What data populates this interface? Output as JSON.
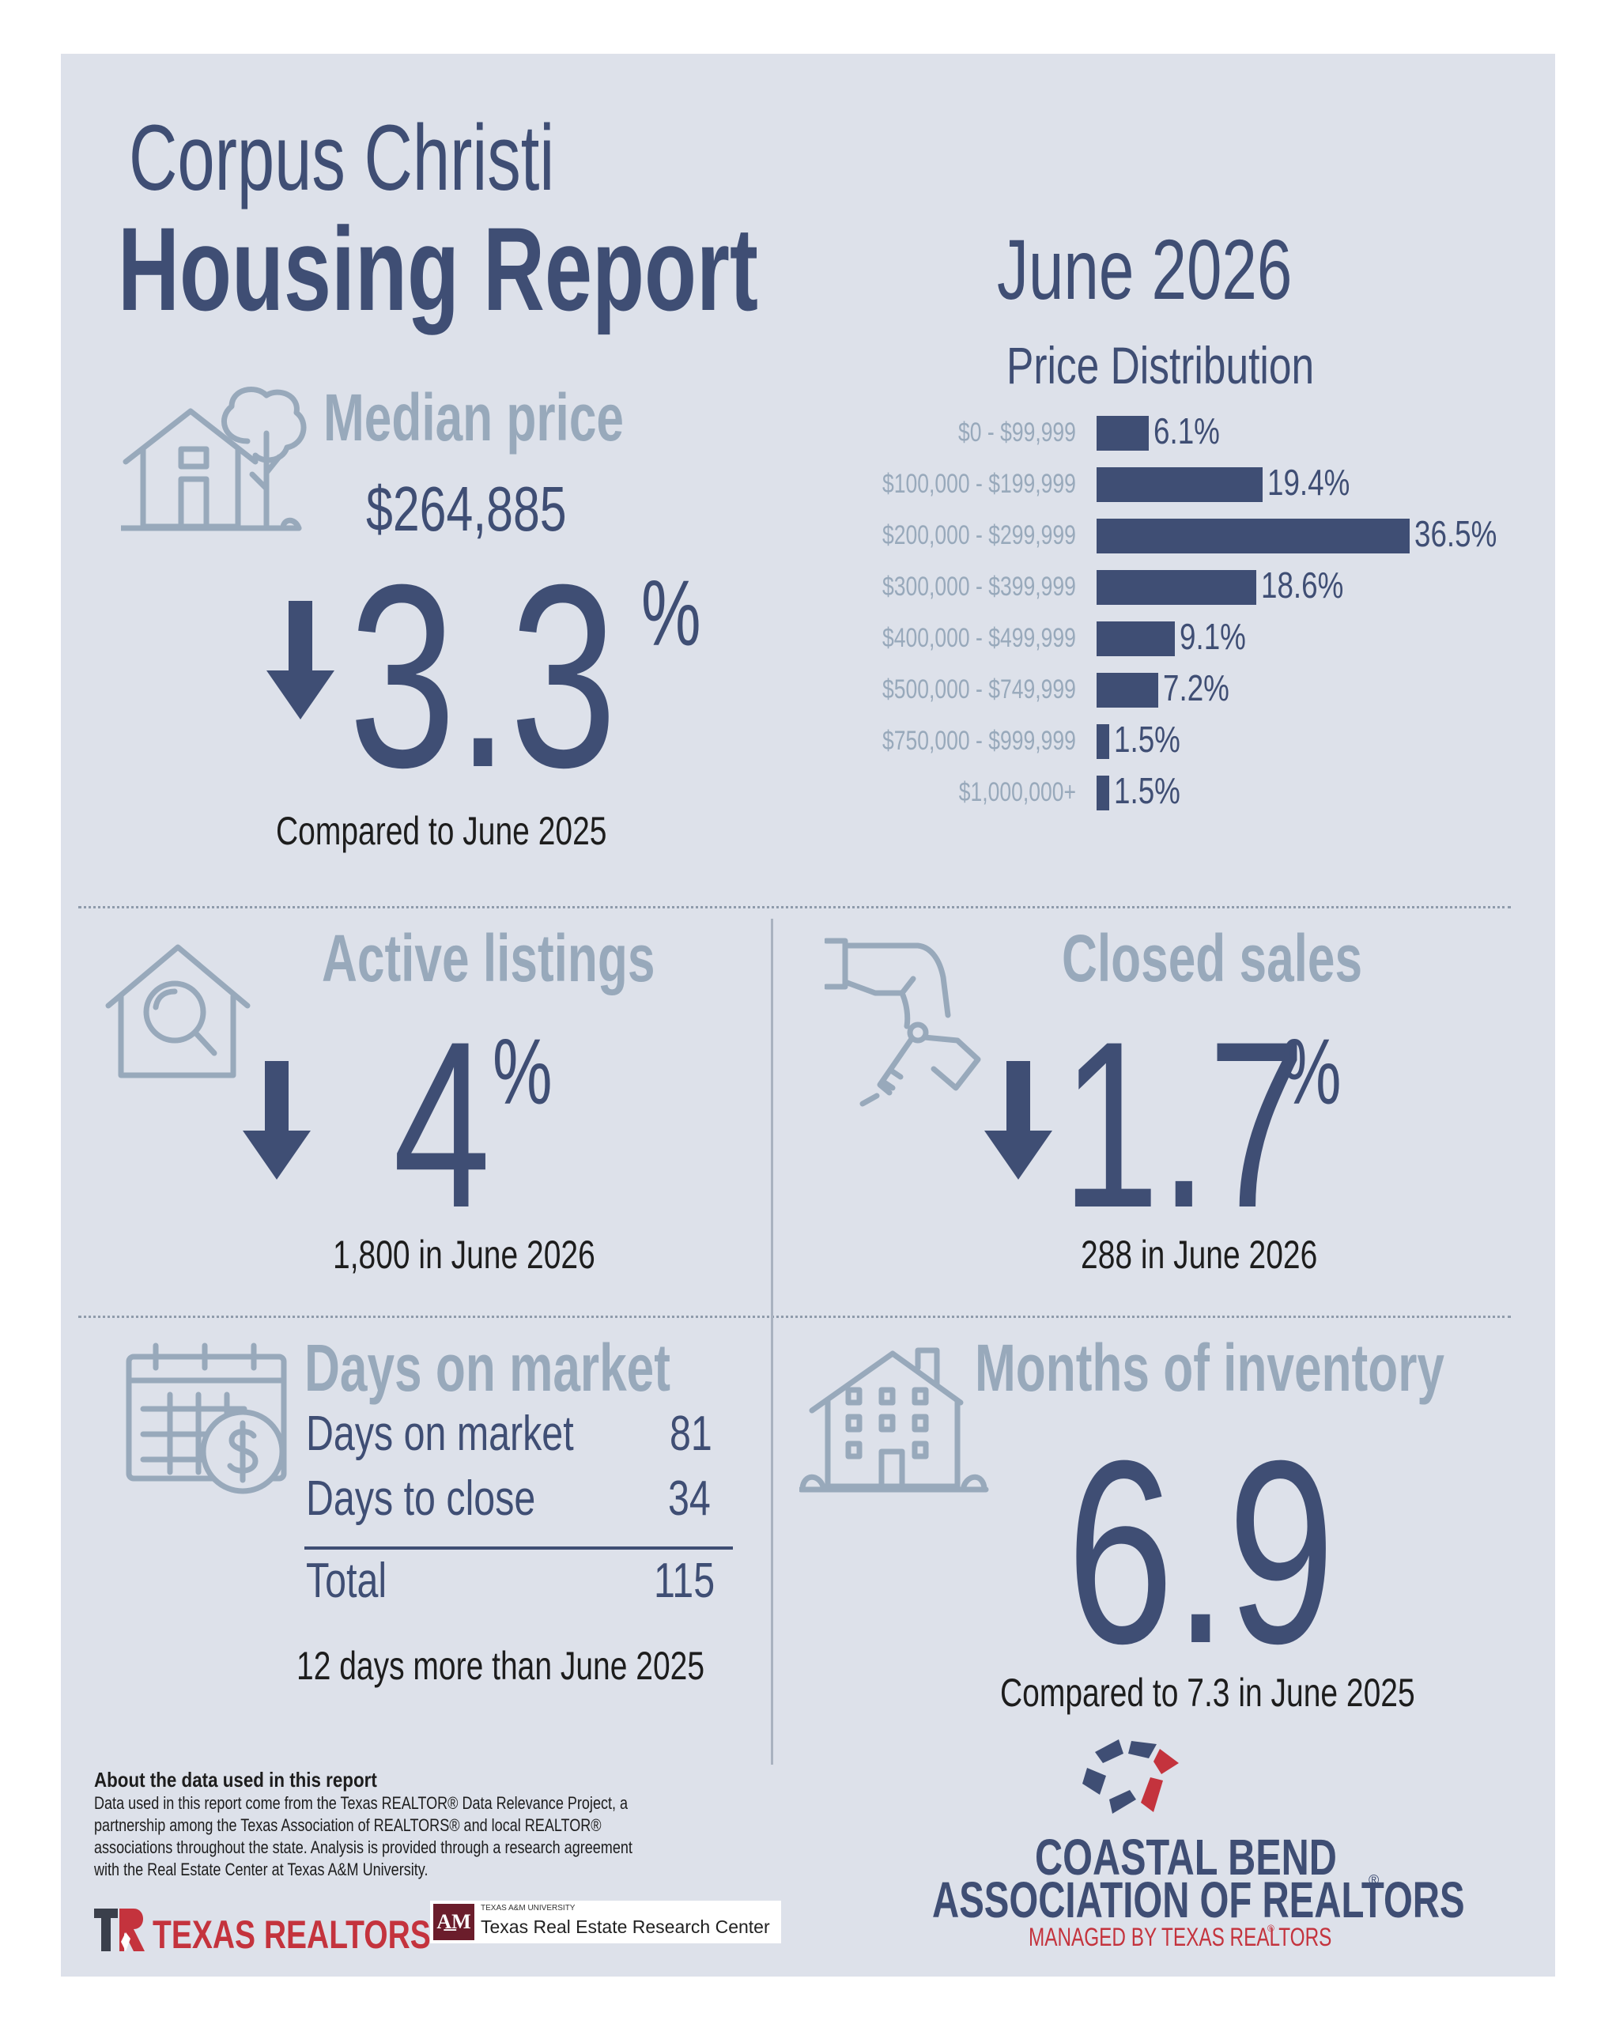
{
  "header": {
    "city": "Corpus Christi",
    "title": "Housing Report",
    "period": "June 2026"
  },
  "colors": {
    "navy": "#3f4e74",
    "slate": "#98a9bb",
    "panel": "#dde1ea",
    "red": "#c4333d"
  },
  "median_price": {
    "heading": "Median price",
    "value": "$264,885",
    "direction": "down",
    "change": "3.3",
    "percent_sign": "%",
    "note": "Compared to June 2025",
    "icon": "house-tree-icon"
  },
  "price_distribution": {
    "heading": "Price Distribution",
    "unit": "%",
    "bars": [
      {
        "range": "$0 - $99,999",
        "value": 6.1,
        "label": "6.1%"
      },
      {
        "range": "$100,000 - $199,999",
        "value": 19.4,
        "label": "19.4%"
      },
      {
        "range": "$200,000 - $299,999",
        "value": 36.5,
        "label": "36.5%"
      },
      {
        "range": "$300,000 - $399,999",
        "value": 18.6,
        "label": "18.6%"
      },
      {
        "range": "$400,000 - $499,999",
        "value": 9.1,
        "label": "9.1%"
      },
      {
        "range": "$500,000 - $749,999",
        "value": 7.2,
        "label": "7.2%"
      },
      {
        "range": "$750,000 - $999,999",
        "value": 1.5,
        "label": "1.5%"
      },
      {
        "range": "$1,000,000+",
        "value": 1.5,
        "label": "1.5%"
      }
    ]
  },
  "active_listings": {
    "heading": "Active listings",
    "direction": "down",
    "change": "4",
    "percent_sign": "%",
    "note": "1,800 in June 2026",
    "icon": "house-search-icon"
  },
  "closed_sales": {
    "heading": "Closed sales",
    "direction": "down",
    "change": "1.7",
    "percent_sign": "%",
    "note": "288 in June 2026",
    "icon": "hand-keys-icon"
  },
  "days_on_market": {
    "heading": "Days on market",
    "rows": [
      {
        "label": "Days on market",
        "value": "81"
      },
      {
        "label": "Days to close",
        "value": "34"
      }
    ],
    "total_label": "Total",
    "total_value": "115",
    "note": "12 days more than June 2025",
    "icon": "calendar-dollar-icon"
  },
  "months_inventory": {
    "heading": "Months of inventory",
    "value": "6.9",
    "note": "Compared to 7.3 in June 2025",
    "icon": "apartment-building-icon"
  },
  "about": {
    "heading": "About the data used in this report",
    "lines": [
      "Data used in this report come from the Texas REALTOR® Data Relevance Project, a",
      "partnership among the Texas Association of REALTORS® and local REALTOR®",
      "associations throughout the state. Analysis is provided through a research agreement",
      "with the Real Estate Center at Texas A&M University."
    ]
  },
  "logos": {
    "texas_realtors": "TEXAS REALTORS",
    "tamu_small": "TEXAS A&M UNIVERSITY",
    "tamu_center": "Texas Real Estate Research Center",
    "association_line1": "COASTAL BEND",
    "association_line2": "ASSOCIATION OF REALTORS",
    "association_registered": "®",
    "association_managed": "MANAGED BY TEXAS REALTORS",
    "managed_registered": "®"
  }
}
